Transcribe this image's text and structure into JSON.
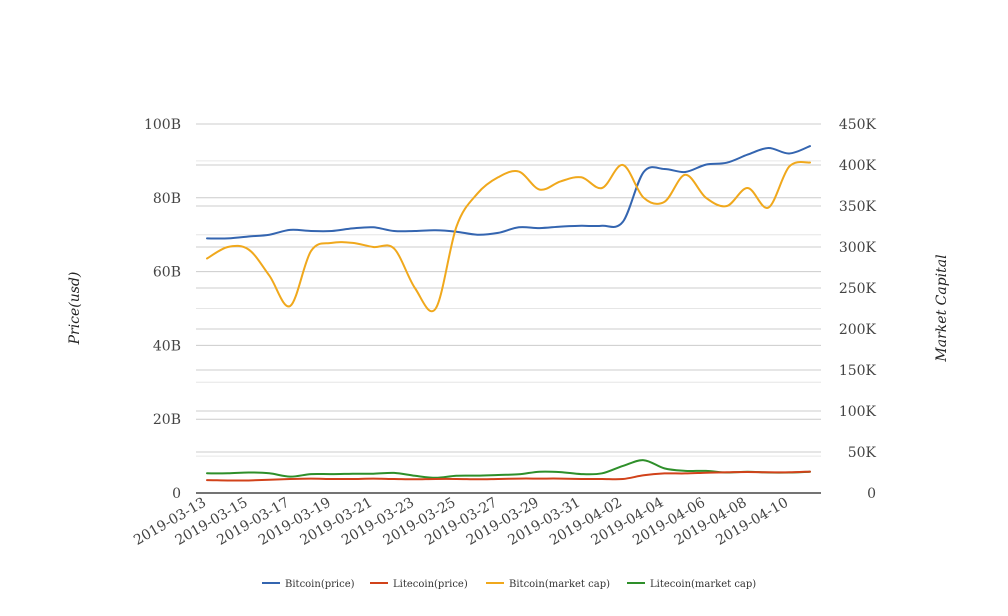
{
  "chart_data": {
    "type": "line",
    "title": "",
    "xlabel": "",
    "ylabel_left": "Price(usd)",
    "ylabel_right": "Market Capital",
    "x": [
      "2019-03-13",
      "2019-03-14",
      "2019-03-15",
      "2019-03-16",
      "2019-03-17",
      "2019-03-18",
      "2019-03-19",
      "2019-03-20",
      "2019-03-21",
      "2019-03-22",
      "2019-03-23",
      "2019-03-24",
      "2019-03-25",
      "2019-03-26",
      "2019-03-27",
      "2019-03-28",
      "2019-03-29",
      "2019-03-30",
      "2019-03-31",
      "2019-04-01",
      "2019-04-02",
      "2019-04-03",
      "2019-04-04",
      "2019-04-05",
      "2019-04-06",
      "2019-04-07",
      "2019-04-08",
      "2019-04-09",
      "2019-04-10",
      "2019-04-11"
    ],
    "x_tick_labels": [
      "2019-03-13",
      "2019-03-15",
      "2019-03-17",
      "2019-03-19",
      "2019-03-21",
      "2019-03-23",
      "2019-03-25",
      "2019-03-27",
      "2019-03-29",
      "2019-03-31",
      "2019-04-02",
      "2019-04-04",
      "2019-04-06",
      "2019-04-08",
      "2019-04-10"
    ],
    "y_left": {
      "min": 0,
      "max": 100,
      "unit": "B",
      "ticks": [
        "0",
        "20B",
        "40B",
        "60B",
        "80B",
        "100B"
      ]
    },
    "y_right": {
      "min": 0,
      "max": 450,
      "unit": "K",
      "ticks": [
        "0",
        "50K",
        "100K",
        "150K",
        "200K",
        "250K",
        "300K",
        "350K",
        "400K",
        "450K"
      ]
    },
    "series": [
      {
        "name": "Bitcoin(price)",
        "axis": "left",
        "color": "#3465b0",
        "values": [
          69,
          69,
          69.5,
          70,
          71.3,
          71,
          71,
          71.7,
          72,
          71,
          71,
          71.2,
          70.8,
          70,
          70.5,
          72,
          71.8,
          72.2,
          72.4,
          72.4,
          73.5,
          87,
          87.8,
          87,
          89,
          89.5,
          91.7,
          93.5,
          92,
          94
        ]
      },
      {
        "name": "Litecoin(price)",
        "axis": "left",
        "color": "#d1421a",
        "values": [
          3.5,
          3.4,
          3.4,
          3.6,
          3.8,
          3.9,
          3.8,
          3.8,
          3.9,
          3.8,
          3.7,
          3.8,
          3.8,
          3.7,
          3.8,
          3.9,
          3.9,
          3.9,
          3.8,
          3.8,
          3.8,
          4.8,
          5.3,
          5.3,
          5.5,
          5.6,
          5.7,
          5.6,
          5.6,
          5.8
        ]
      },
      {
        "name": "Bitcoin(market cap)",
        "axis": "right",
        "color": "#f0a81c",
        "values": [
          286,
          300,
          297,
          265,
          228,
          295,
          305,
          305,
          300,
          298,
          250,
          225,
          325,
          365,
          385,
          392,
          370,
          380,
          385,
          372,
          400,
          360,
          355,
          388,
          360,
          350,
          372,
          348,
          398,
          403
        ]
      },
      {
        "name": "Litecoin(market cap)",
        "axis": "right",
        "color": "#2e8f2a",
        "values": [
          24,
          24,
          25,
          24,
          20,
          23,
          23,
          23.5,
          23.5,
          24.5,
          21,
          18.5,
          21,
          21.2,
          22,
          22.8,
          26,
          25.5,
          23,
          24,
          33,
          40,
          30,
          27,
          27,
          25,
          26,
          25,
          25,
          26
        ]
      }
    ],
    "legend_position": "bottom",
    "grid": true
  }
}
